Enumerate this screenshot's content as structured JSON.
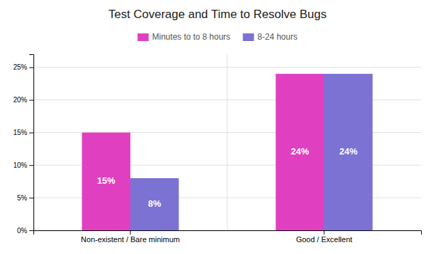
{
  "chart_data": {
    "type": "bar",
    "title": "Test Coverage and Time to Resolve Bugs",
    "categories": [
      "Non-existent / Bare minimum",
      "Good / Excellent"
    ],
    "series": [
      {
        "name": "Minutes to to 8 hours",
        "color": "#e040c0",
        "values": [
          15,
          24
        ],
        "value_labels": [
          "15%",
          "24%"
        ]
      },
      {
        "name": "8-24 hours",
        "color": "#7b72d4",
        "values": [
          8,
          24
        ],
        "value_labels": [
          "8%",
          "24%"
        ]
      }
    ],
    "ylim": [
      0,
      27
    ],
    "yticks": [
      {
        "value": 0,
        "label": "0%"
      },
      {
        "value": 5,
        "label": "5%"
      },
      {
        "value": 10,
        "label": "10%"
      },
      {
        "value": 15,
        "label": "15%"
      },
      {
        "value": 20,
        "label": "20%"
      },
      {
        "value": 25,
        "label": "25%"
      }
    ],
    "grid": true,
    "legend": "top",
    "data_labels": true
  }
}
